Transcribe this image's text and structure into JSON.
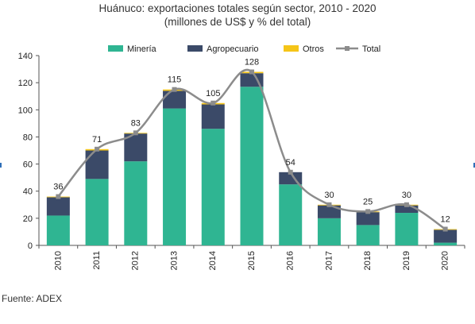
{
  "title": "Huánuco: exportaciones totales según sector, 2010 - 2020",
  "subtitle": "(millones de US$ y % del total)",
  "source": "Fuente: ADEX",
  "chart_data": {
    "type": "bar",
    "stacked": true,
    "categories": [
      "2010",
      "2011",
      "2012",
      "2013",
      "2014",
      "2015",
      "2016",
      "2017",
      "2018",
      "2019",
      "2020"
    ],
    "series": [
      {
        "name": "Minería",
        "color": "#2fb592",
        "values": [
          22,
          49,
          62,
          101,
          86,
          117,
          45,
          20,
          15,
          24,
          2
        ]
      },
      {
        "name": "Agropecuario",
        "color": "#3b4a68",
        "values": [
          13.5,
          21,
          20.5,
          13,
          18,
          10,
          9,
          9.5,
          9.5,
          5.5,
          9.5
        ]
      },
      {
        "name": "Otros",
        "color": "#f5c518",
        "values": [
          0.5,
          1,
          0.5,
          1,
          1,
          1,
          0,
          0.5,
          0.5,
          0.5,
          0.5
        ]
      }
    ],
    "line": {
      "name": "Total",
      "color": "#8c8c8c",
      "values": [
        36,
        71,
        83,
        115,
        105,
        128,
        54,
        30,
        25,
        30,
        12
      ]
    },
    "data_labels": [
      "36",
      "71",
      "83",
      "115",
      "105",
      "128",
      "54",
      "30",
      "25",
      "30",
      "12"
    ],
    "yticks": [
      "0",
      "20",
      "40",
      "60",
      "80",
      "100",
      "120",
      "140"
    ],
    "ylim": [
      0,
      140
    ],
    "xlabel": "",
    "ylabel": "",
    "legend_position": "top",
    "grid": false
  }
}
